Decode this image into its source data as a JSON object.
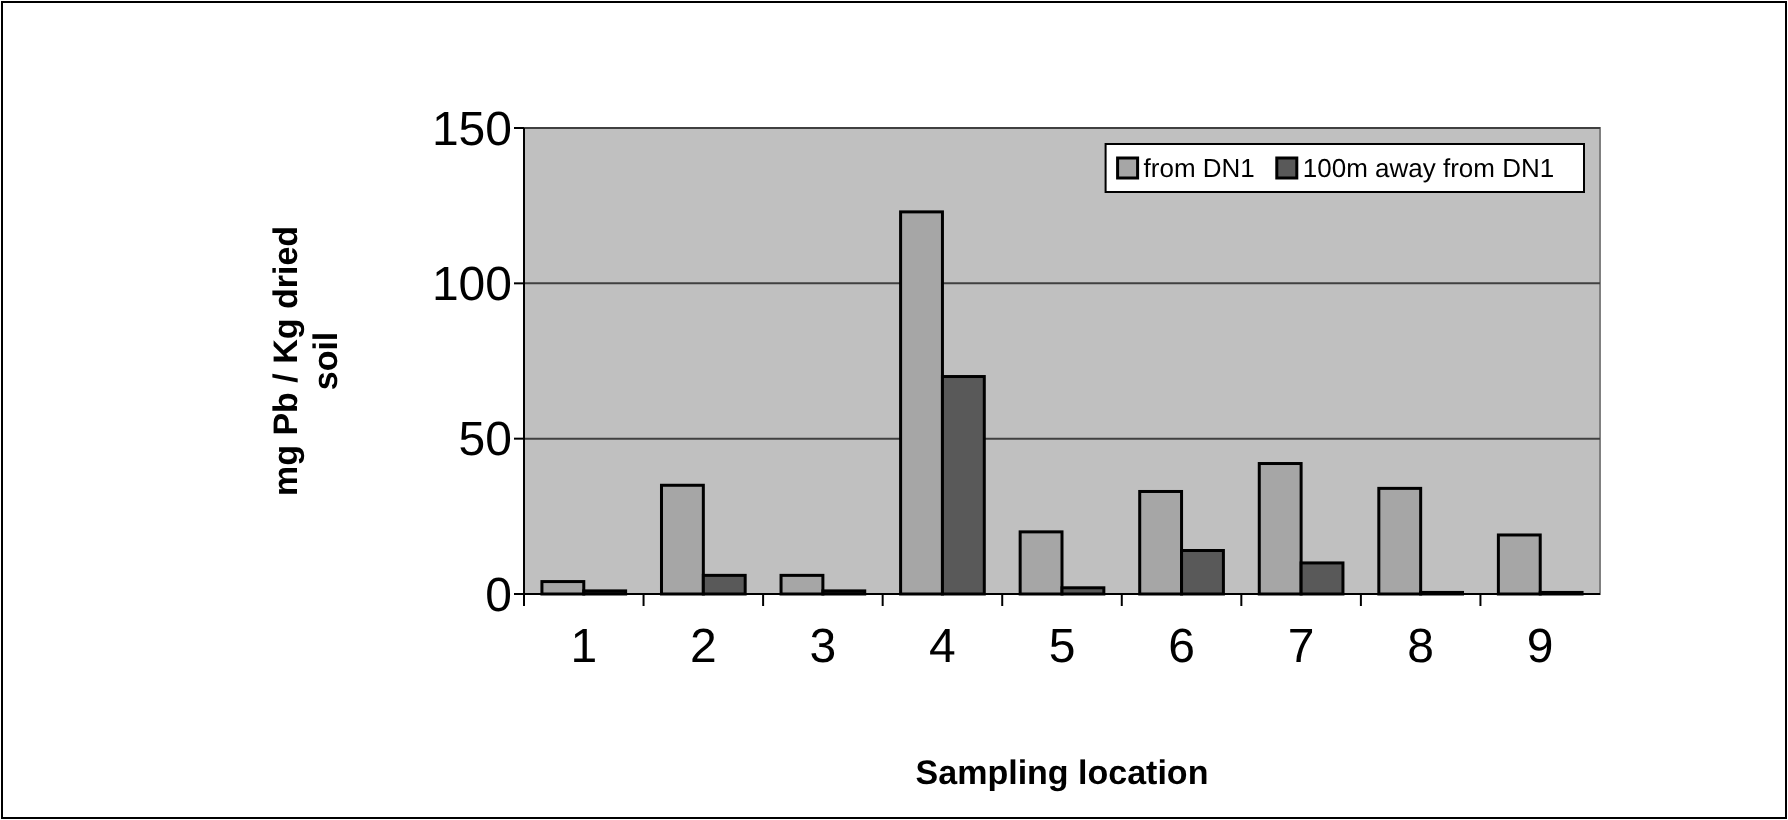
{
  "chart_data": {
    "type": "bar",
    "xlabel": "Sampling location",
    "ylabel": "mg Pb / Kg dried soil",
    "categories": [
      "1",
      "2",
      "3",
      "4",
      "5",
      "6",
      "7",
      "8",
      "9"
    ],
    "series": [
      {
        "name": "from DN1",
        "color": "#a6a6a6",
        "values": [
          4,
          35,
          6,
          123,
          20,
          33,
          42,
          34,
          19
        ]
      },
      {
        "name": "100m away from DN1",
        "color": "#595959",
        "values": [
          1,
          6,
          1,
          70,
          2,
          14,
          10,
          0.5,
          0.5
        ]
      }
    ],
    "ylim": [
      0,
      150
    ],
    "yticks": [
      0,
      50,
      100,
      150
    ],
    "grid": "y",
    "legend": "top right"
  }
}
